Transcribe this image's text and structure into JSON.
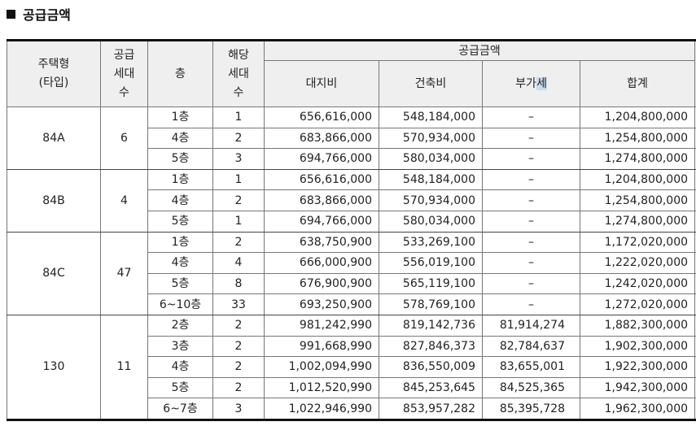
{
  "title": "공급금액",
  "header": {
    "type_line1": "주택형",
    "type_line2": "(타입)",
    "units_line1": "공급",
    "units_line2": "세대",
    "units_line3": "수",
    "floor": "층",
    "count_line1": "해당",
    "count_line2": "세대",
    "count_line3": "수",
    "supply_price": "공급금액",
    "land": "대지비",
    "building": "건축비",
    "vat_prefix": "부가",
    "vat_suffix": "세",
    "total": "합계"
  },
  "groups": [
    {
      "type": "84A",
      "units": "6",
      "rows": [
        {
          "floor": "1층",
          "count": "1",
          "land": "656,616,000",
          "building": "548,184,000",
          "vat": "–",
          "total": "1,204,800,000"
        },
        {
          "floor": "4층",
          "count": "2",
          "land": "683,866,000",
          "building": "570,934,000",
          "vat": "–",
          "total": "1,254,800,000"
        },
        {
          "floor": "5층",
          "count": "3",
          "land": "694,766,000",
          "building": "580,034,000",
          "vat": "–",
          "total": "1,274,800,000"
        }
      ]
    },
    {
      "type": "84B",
      "units": "4",
      "rows": [
        {
          "floor": "1층",
          "count": "1",
          "land": "656,616,000",
          "building": "548,184,000",
          "vat": "–",
          "total": "1,204,800,000"
        },
        {
          "floor": "4층",
          "count": "2",
          "land": "683,866,000",
          "building": "570,934,000",
          "vat": "–",
          "total": "1,254,800,000"
        },
        {
          "floor": "5층",
          "count": "1",
          "land": "694,766,000",
          "building": "580,034,000",
          "vat": "–",
          "total": "1,274,800,000"
        }
      ]
    },
    {
      "type": "84C",
      "units": "47",
      "rows": [
        {
          "floor": "1층",
          "count": "2",
          "land": "638,750,900",
          "building": "533,269,100",
          "vat": "–",
          "total": "1,172,020,000"
        },
        {
          "floor": "4층",
          "count": "4",
          "land": "666,000,900",
          "building": "556,019,100",
          "vat": "–",
          "total": "1,222,020,000"
        },
        {
          "floor": "5층",
          "count": "8",
          "land": "676,900,900",
          "building": "565,119,100",
          "vat": "–",
          "total": "1,242,020,000"
        },
        {
          "floor": "6~10층",
          "count": "33",
          "land": "693,250,900",
          "building": "578,769,100",
          "vat": "–",
          "total": "1,272,020,000"
        }
      ]
    },
    {
      "type": "130",
      "units": "11",
      "rows": [
        {
          "floor": "2층",
          "count": "2",
          "land": "981,242,990",
          "building": "819,142,736",
          "vat": "81,914,274",
          "total": "1,882,300,000"
        },
        {
          "floor": "3층",
          "count": "2",
          "land": "991,668,990",
          "building": "827,846,373",
          "vat": "82,784,637",
          "total": "1,902,300,000"
        },
        {
          "floor": "4층",
          "count": "2",
          "land": "1,002,094,990",
          "building": "836,550,009",
          "vat": "83,655,001",
          "total": "1,922,300,000"
        },
        {
          "floor": "5층",
          "count": "2",
          "land": "1,012,520,990",
          "building": "845,253,645",
          "vat": "84,525,365",
          "total": "1,942,300,000"
        },
        {
          "floor": "6~7층",
          "count": "3",
          "land": "1,022,946,990",
          "building": "853,957,282",
          "vat": "85,395,728",
          "total": "1,962,300,000"
        }
      ]
    }
  ]
}
